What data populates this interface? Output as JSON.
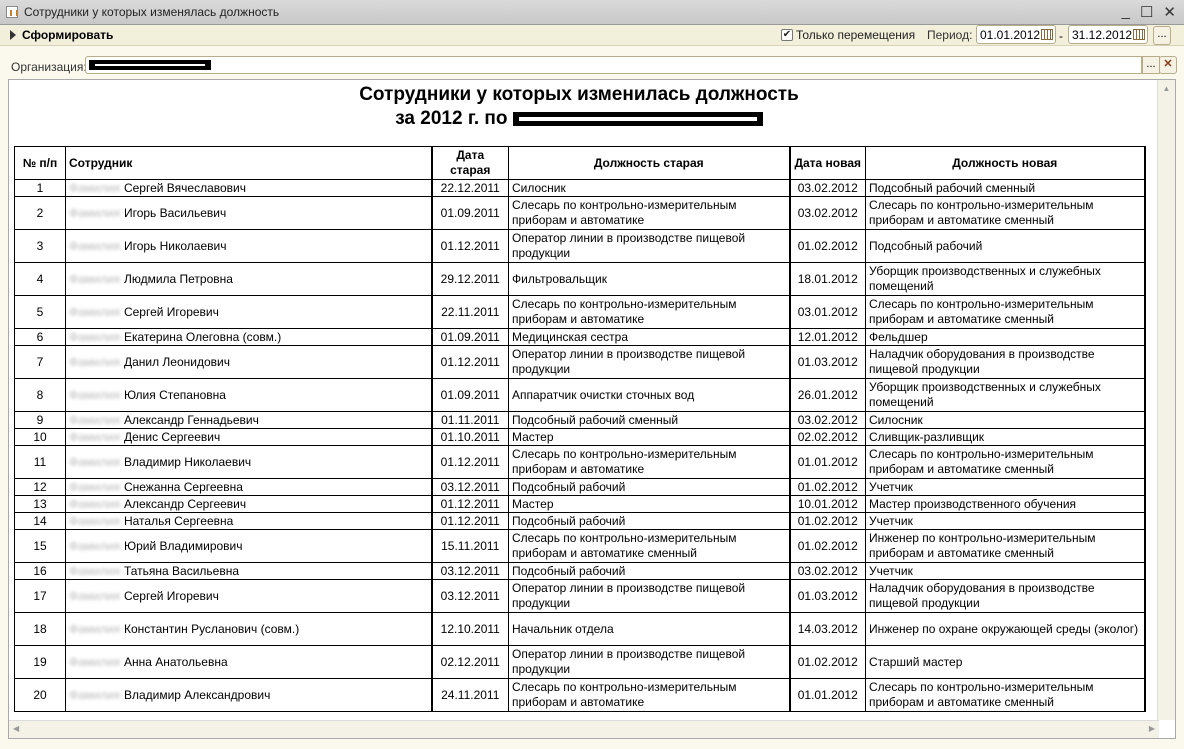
{
  "window": {
    "title": "Сотрудники у которых изменялась должность"
  },
  "toolbar": {
    "generate_label": "Сформировать",
    "only_moves_label": "Только перемещения",
    "only_moves_checked": true,
    "period_label": "Период:",
    "date_from": "01.01.2012",
    "date_to": "31.12.2012",
    "dash": "-",
    "more_label": "..."
  },
  "filter": {
    "org_label": "Организация:",
    "more_label": "...",
    "clear_label": "✕"
  },
  "report": {
    "title": "Сотрудники у которых изменилась должность",
    "subtitle": "за 2012 г. по",
    "columns": [
      "№ п/п",
      "Сотрудник",
      "Дата старая",
      "Должность старая",
      "Дата новая",
      "Должность новая"
    ],
    "rows": [
      [
        "1",
        "Сергей Вячеславович",
        "22.12.2011",
        "Силосник",
        "03.02.2012",
        "Подсобный рабочий сменный"
      ],
      [
        "2",
        "Игорь Васильевич",
        "01.09.2011",
        "Слесарь по контрольно-измерительным приборам и автоматике",
        "03.02.2012",
        "Слесарь по контрольно-измерительным приборам и автоматике сменный"
      ],
      [
        "3",
        "Игорь Николаевич",
        "01.12.2011",
        "Оператор линии в производстве пищевой продукции",
        "01.02.2012",
        "Подсобный рабочий"
      ],
      [
        "4",
        "Людмила Петровна",
        "29.12.2011",
        "Фильтровальщик",
        "18.01.2012",
        "Уборщик производственных и служебных помещений"
      ],
      [
        "5",
        "Сергей Игоревич",
        "22.11.2011",
        "Слесарь по контрольно-измерительным приборам и автоматике",
        "03.01.2012",
        "Слесарь по контрольно-измерительным приборам и автоматике сменный"
      ],
      [
        "6",
        "Екатерина Олеговна (совм.)",
        "01.09.2011",
        "Медицинская сестра",
        "12.01.2012",
        "Фельдшер"
      ],
      [
        "7",
        "Данил Леонидович",
        "01.12.2011",
        "Оператор линии в производстве пищевой продукции",
        "01.03.2012",
        "Наладчик оборудования в производстве пищевой продукции"
      ],
      [
        "8",
        "Юлия Степановна",
        "01.09.2011",
        "Аппаратчик очистки сточных вод",
        "26.01.2012",
        "Уборщик производственных и служебных помещений"
      ],
      [
        "9",
        "Александр Геннадьевич",
        "01.11.2011",
        "Подсобный рабочий сменный",
        "03.02.2012",
        "Силосник"
      ],
      [
        "10",
        "Денис Сергеевич",
        "01.10.2011",
        "Мастер",
        "02.02.2012",
        "Сливщик-разливщик"
      ],
      [
        "11",
        "Владимир Николаевич",
        "01.12.2011",
        "Слесарь по контрольно-измерительным приборам и автоматике",
        "01.01.2012",
        "Слесарь по контрольно-измерительным приборам и автоматике сменный"
      ],
      [
        "12",
        "Снежанна Сергеевна",
        "03.12.2011",
        "Подсобный рабочий",
        "01.02.2012",
        "Учетчик"
      ],
      [
        "13",
        "Александр Сергеевич",
        "01.12.2011",
        "Мастер",
        "10.01.2012",
        "Мастер производственного обучения"
      ],
      [
        "14",
        "Наталья Сергеевна",
        "01.12.2011",
        "Подсобный рабочий",
        "01.02.2012",
        "Учетчик"
      ],
      [
        "15",
        "Юрий Владимирович",
        "15.11.2011",
        "Слесарь по контрольно-измерительным приборам и автоматике сменный",
        "01.02.2012",
        "Инженер по контрольно-измерительным приборам и автоматике сменный"
      ],
      [
        "16",
        "Татьяна Васильевна",
        "03.12.2011",
        "Подсобный рабочий",
        "03.02.2012",
        "Учетчик"
      ],
      [
        "17",
        "Сергей Игоревич",
        "03.12.2011",
        "Оператор линии в производстве пищевой продукции",
        "01.03.2012",
        "Наладчик оборудования в производстве пищевой продукции"
      ],
      [
        "18",
        "Константин Русланович (совм.)",
        "12.10.2011",
        "Начальник отдела",
        "14.03.2012",
        "Инженер по охране окружающей среды (эколог)"
      ],
      [
        "19",
        "Анна Анатольевна",
        "02.12.2011",
        "Оператор линии в производстве пищевой продукции",
        "01.02.2012",
        "Старший мастер"
      ],
      [
        "20",
        "Владимир Александрович",
        "24.11.2011",
        "Слесарь по контрольно-измерительным приборам и автоматике",
        "01.01.2012",
        "Слесарь по контрольно-измерительным приборам и автоматике сменный"
      ]
    ]
  }
}
